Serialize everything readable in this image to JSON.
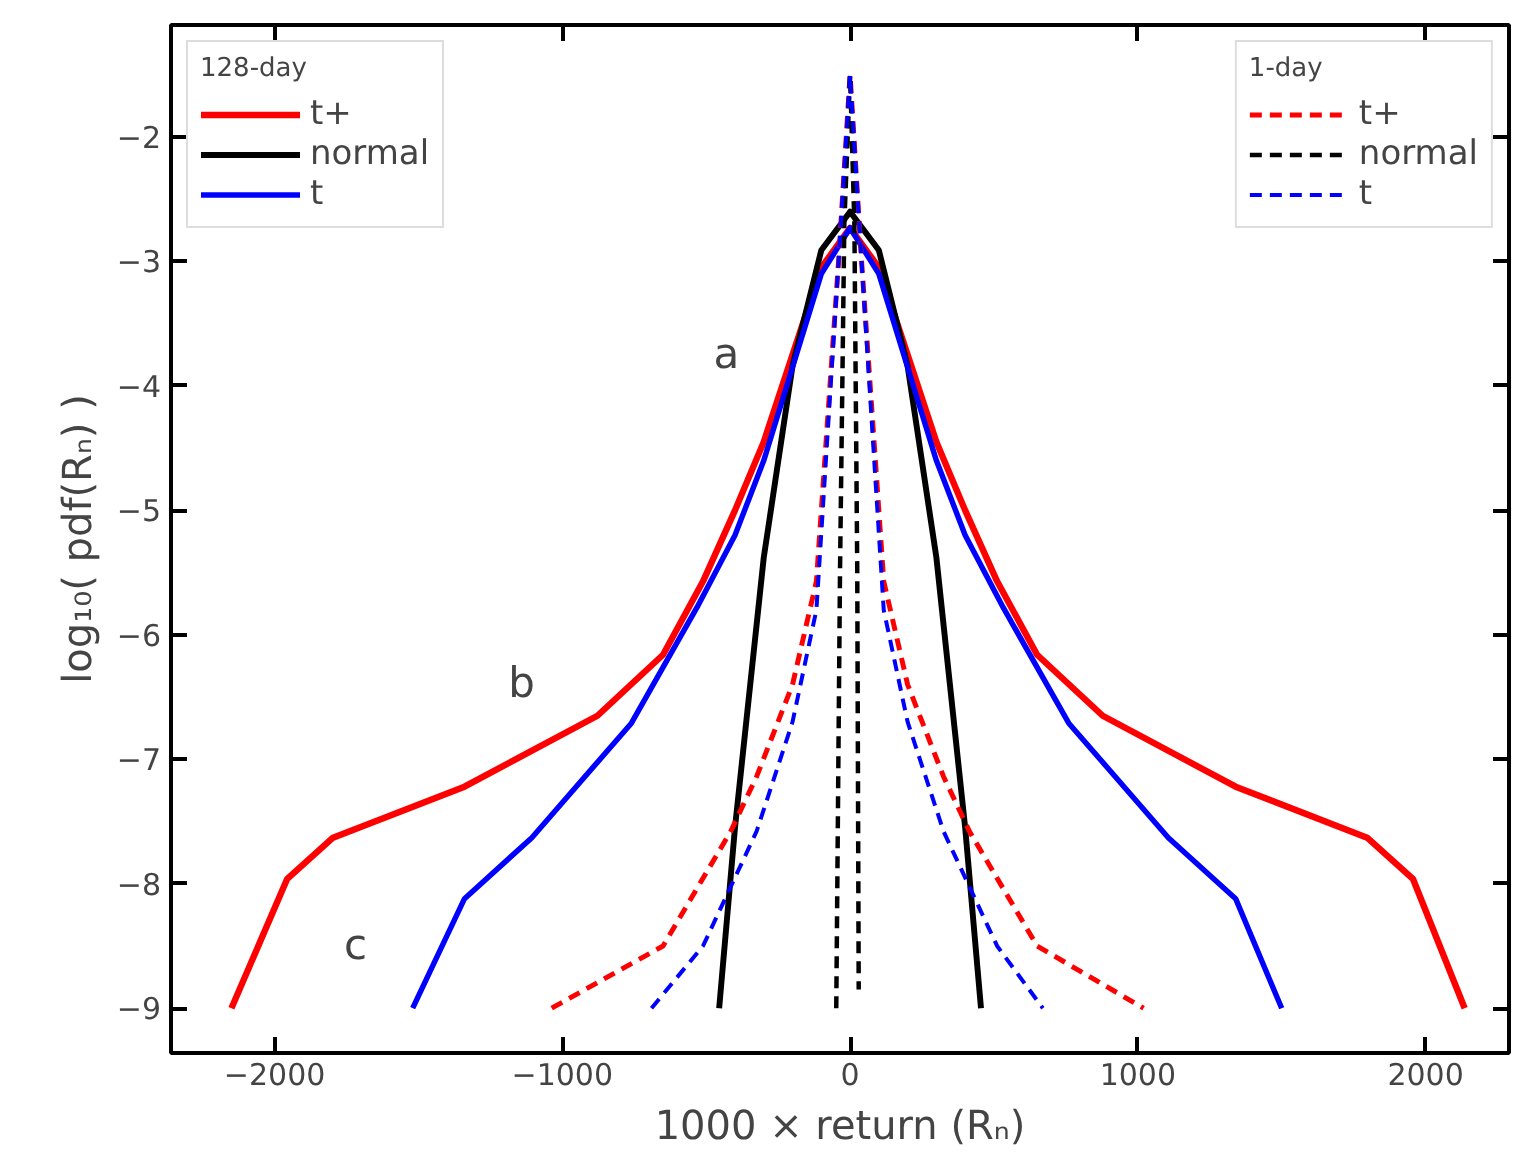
{
  "chart_data": {
    "type": "line",
    "xlabel": "1000 × return (Rₙ)",
    "ylabel": "log₁₀( pdf(Rₙ) )",
    "xlim": [
      -2360,
      2290
    ],
    "ylim": [
      -9.36,
      -1.1
    ],
    "xticks": [
      -2000,
      -1000,
      0,
      1000,
      2000
    ],
    "yticks": [
      -9,
      -8,
      -7,
      -6,
      -5,
      -4,
      -3,
      -2
    ],
    "grid": false,
    "legend": [
      "top left",
      "top right"
    ],
    "legend_title": [
      "128-day",
      "1-day"
    ],
    "series": [
      {
        "name": "t+",
        "color": "#ff0000",
        "line_style": "solid",
        "x": [
          -2150,
          -1956,
          -1797,
          -1340,
          -878,
          -650,
          -511,
          -400,
          -300,
          -200,
          -100,
          0,
          100,
          200,
          300,
          400,
          511,
          650,
          878,
          1340,
          1797,
          1956,
          2136
        ],
        "values": [
          -9,
          -7.96,
          -7.63,
          -7.22,
          -6.65,
          -6.16,
          -5.57,
          -5.0,
          -4.45,
          -3.75,
          -3.05,
          -2.73,
          -3.05,
          -3.75,
          -4.45,
          -5.0,
          -5.57,
          -6.16,
          -6.65,
          -7.22,
          -7.63,
          -7.96,
          -9
        ]
      },
      {
        "name": "normal",
        "color": "#000000",
        "line_style": "solid",
        "x": [
          -455,
          -400,
          -300,
          -200,
          -100,
          0,
          100,
          200,
          300,
          400,
          455
        ],
        "values": [
          -9,
          -7.55,
          -5.38,
          -3.84,
          -2.91,
          -2.6,
          -2.91,
          -3.84,
          -5.38,
          -7.55,
          -9
        ]
      },
      {
        "name": "t",
        "color": "#0000ff",
        "line_style": "solid",
        "x": [
          -1520,
          -1340,
          -1106,
          -760,
          -532,
          -400,
          -300,
          -200,
          -100,
          0,
          100,
          200,
          300,
          400,
          532,
          760,
          1106,
          1340,
          1500
        ],
        "values": [
          -9,
          -8.12,
          -7.63,
          -6.71,
          -5.78,
          -5.2,
          -4.6,
          -3.85,
          -3.1,
          -2.73,
          -3.1,
          -3.85,
          -4.6,
          -5.2,
          -5.78,
          -6.71,
          -7.63,
          -8.12,
          -9
        ]
      },
      {
        "name": "t+",
        "color": "#ff0000",
        "line_style": "dashed",
        "x": [
          -1037,
          -650,
          -415,
          -325,
          -200,
          -117,
          -40,
          0,
          40,
          117,
          200,
          325,
          415,
          650,
          1020
        ],
        "values": [
          -9,
          -8.5,
          -7.58,
          -7.14,
          -6.4,
          -5.57,
          -3,
          -1.5,
          -3,
          -5.57,
          -6.4,
          -7.14,
          -7.58,
          -8.5,
          -9
        ]
      },
      {
        "name": "normal",
        "color": "#000000",
        "line_style": "dashed",
        "x": [
          -48,
          -35,
          -20,
          0,
          15,
          25,
          30
        ],
        "values": [
          -9,
          -5.5,
          -2.7,
          -1.5,
          -2.7,
          -5.5,
          -8.85
        ]
      },
      {
        "name": "t",
        "color": "#0000ff",
        "line_style": "dashed",
        "x": [
          -690,
          -511,
          -325,
          -200,
          -117,
          -40,
          0,
          40,
          117,
          200,
          325,
          511,
          670
        ],
        "values": [
          -9,
          -8.5,
          -7.58,
          -6.7,
          -5.8,
          -3,
          -1.5,
          -3,
          -5.8,
          -6.7,
          -7.58,
          -8.5,
          -9
        ]
      }
    ],
    "annotations": [
      "a",
      "b",
      "c"
    ]
  }
}
